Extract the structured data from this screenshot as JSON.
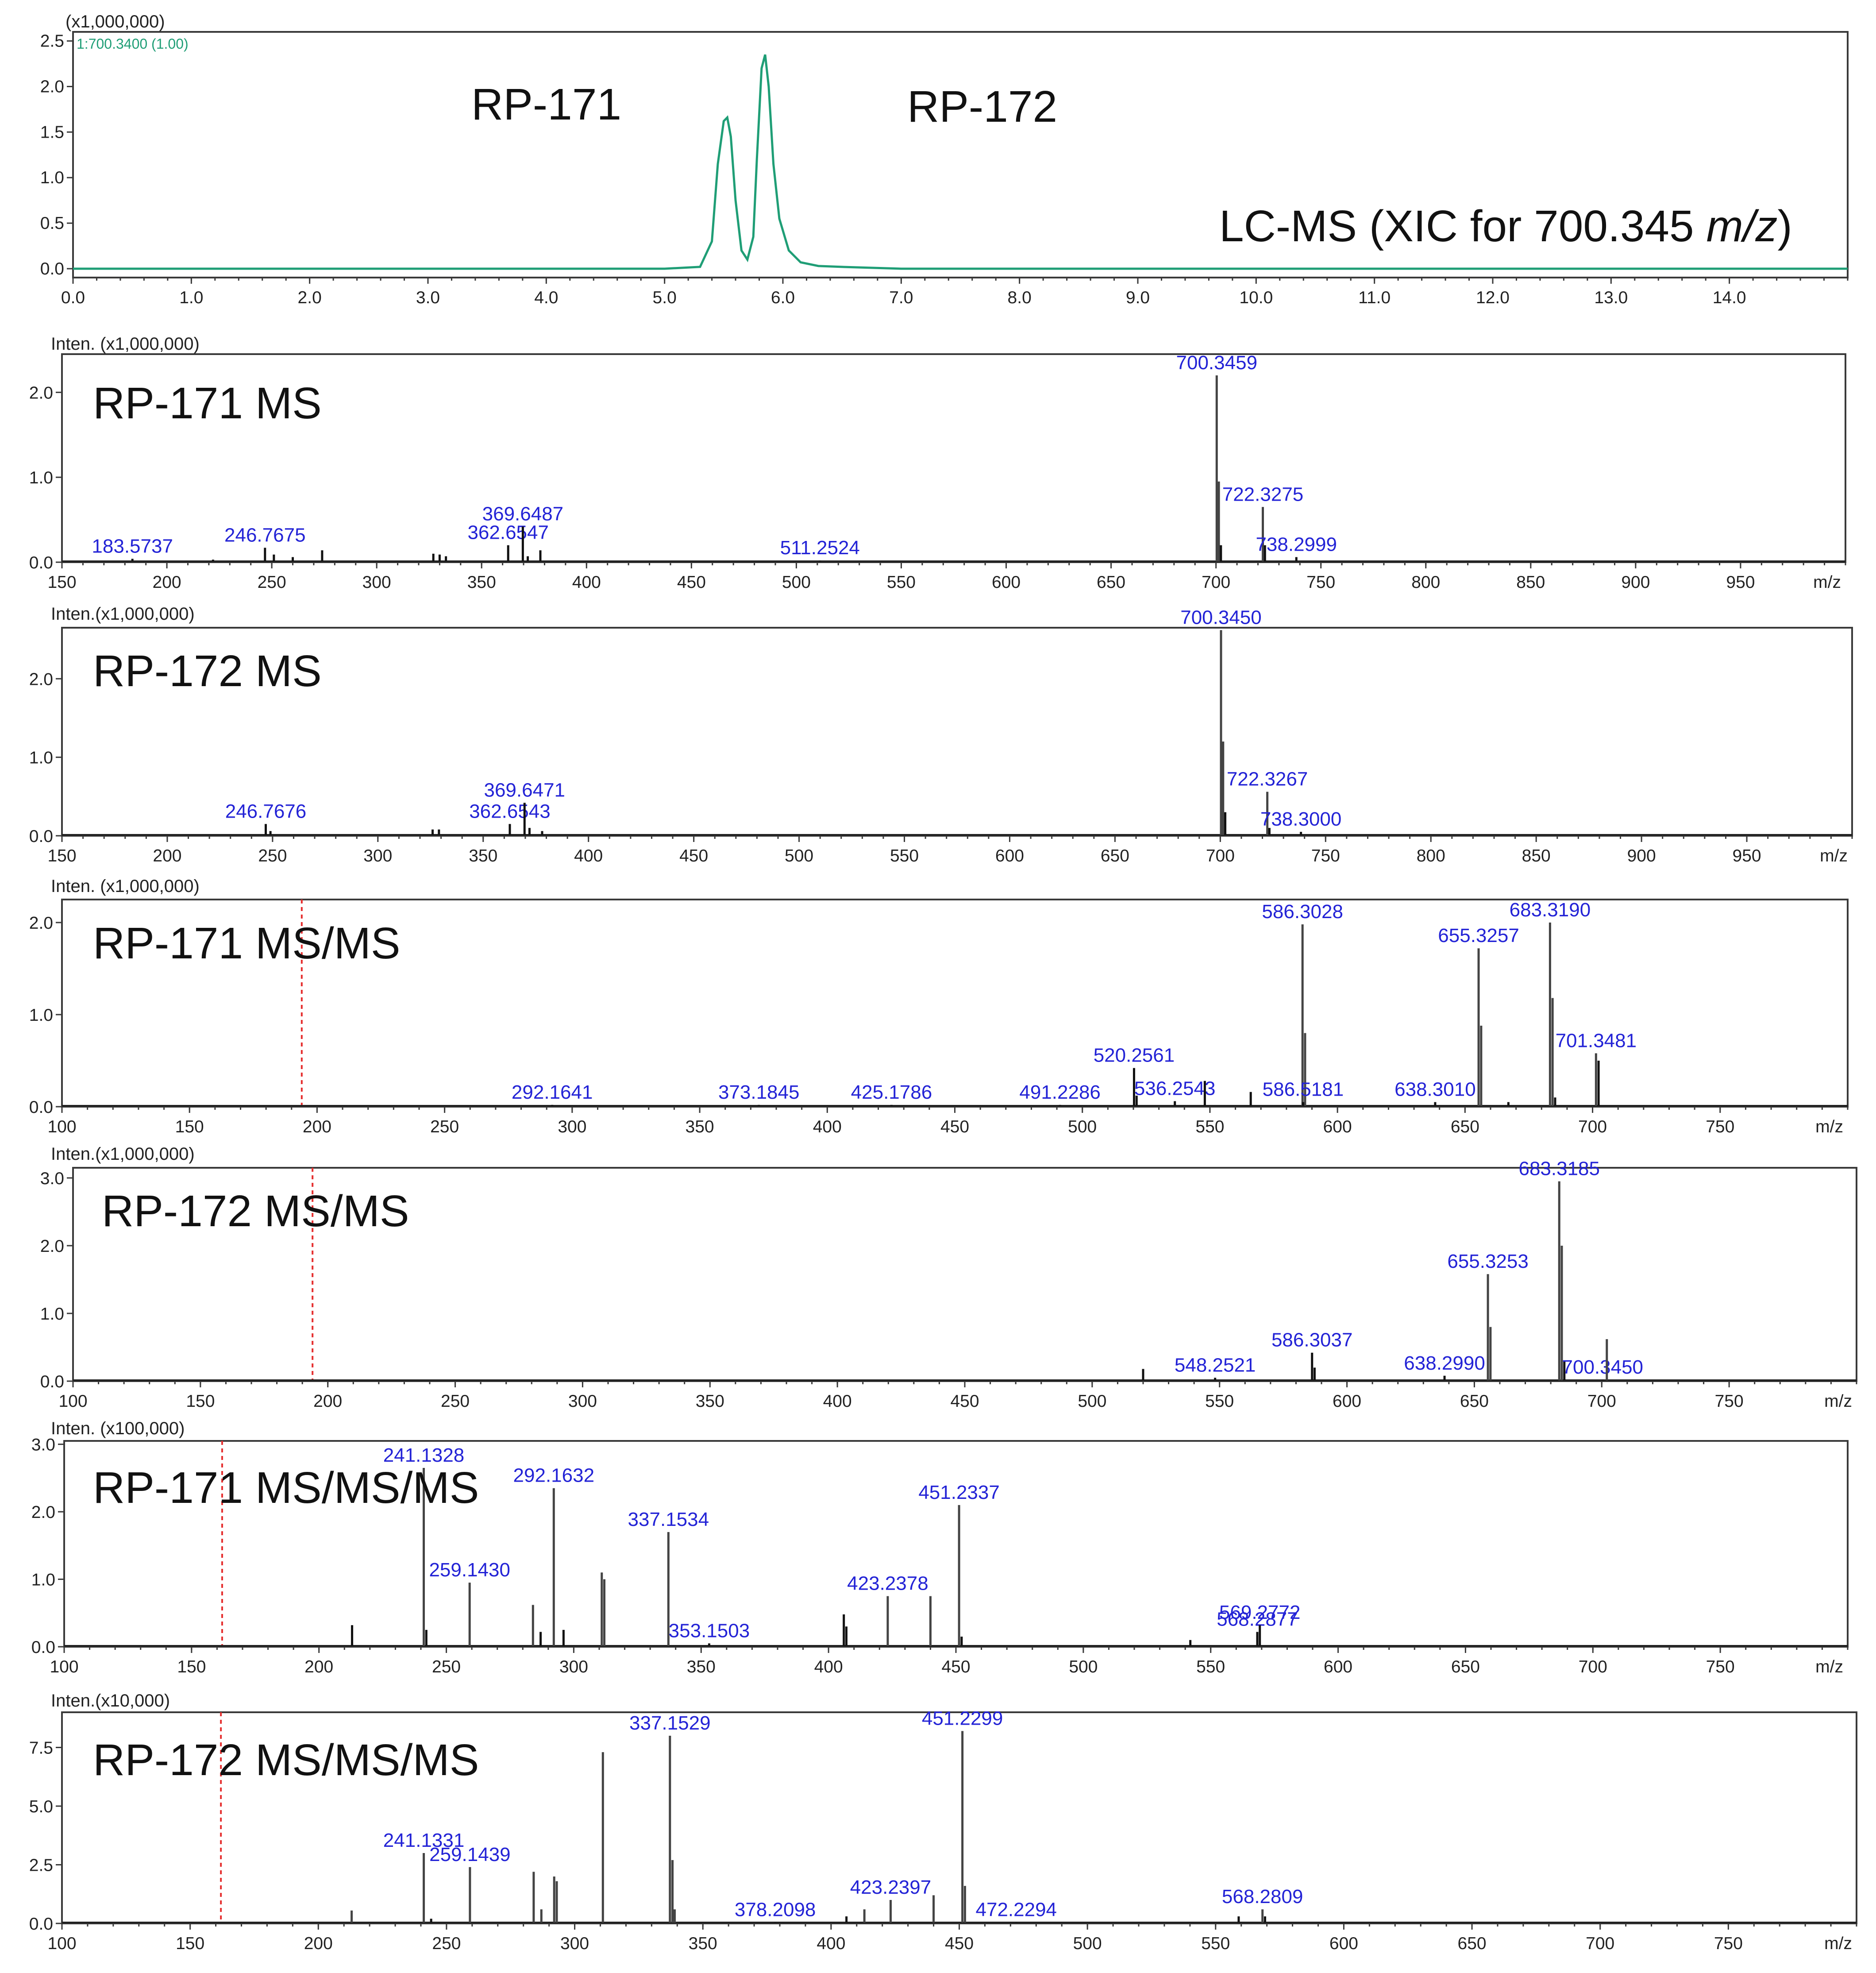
{
  "chart_data": [
    {
      "id": "xic",
      "type": "line",
      "title": "",
      "intensity_unit": "(x1,000,000)",
      "trace_label": "1:700.3400 (1.00)",
      "annotation_parts": [
        "LC-MS (XIC for 700.345 ",
        "m/z",
        ")"
      ],
      "peak_labels": [
        "RP-171",
        "RP-172"
      ],
      "xlim": [
        0,
        15.0
      ],
      "ylim": [
        0,
        2.6
      ],
      "xticks": [
        "0.0",
        "1.0",
        "2.0",
        "3.0",
        "4.0",
        "5.0",
        "6.0",
        "7.0",
        "8.0",
        "9.0",
        "10.0",
        "11.0",
        "12.0",
        "13.0",
        "14.0"
      ],
      "yticks": [
        "0.0",
        "0.5",
        "1.0",
        "1.5",
        "2.0",
        "2.5"
      ],
      "series": [
        {
          "name": "1:700.3400 (1.00)",
          "color": "#1f9e76",
          "x": [
            0,
            5.0,
            5.3,
            5.4,
            5.45,
            5.5,
            5.53,
            5.56,
            5.6,
            5.65,
            5.7,
            5.75,
            5.78,
            5.82,
            5.85,
            5.88,
            5.92,
            5.97,
            6.05,
            6.15,
            6.3,
            6.5,
            7.0,
            15.0
          ],
          "y": [
            0,
            0,
            0.02,
            0.3,
            1.15,
            1.62,
            1.66,
            1.45,
            0.75,
            0.2,
            0.1,
            0.35,
            1.2,
            2.2,
            2.35,
            2.0,
            1.15,
            0.55,
            0.2,
            0.07,
            0.03,
            0.02,
            0.0,
            0.0
          ]
        }
      ]
    },
    {
      "id": "rp171-ms",
      "type": "bar",
      "title": "RP-171 MS",
      "intensity_unit": "Inten. (x1,000,000)",
      "xlabel": "m/z",
      "xlim": [
        150,
        1000
      ],
      "ylim": [
        0,
        2.45
      ],
      "xticks": [
        150,
        200,
        250,
        300,
        350,
        400,
        450,
        500,
        550,
        600,
        650,
        700,
        750,
        800,
        850,
        900,
        950
      ],
      "yticks": [
        "0.0",
        "1.0",
        "2.0"
      ],
      "peaks": [
        {
          "mz": 183.5737,
          "intensity": 0.04,
          "label": "183.5737"
        },
        {
          "mz": 222,
          "intensity": 0.03
        },
        {
          "mz": 246.7675,
          "intensity": 0.17,
          "label": "246.7675"
        },
        {
          "mz": 251,
          "intensity": 0.09
        },
        {
          "mz": 260,
          "intensity": 0.06
        },
        {
          "mz": 274,
          "intensity": 0.14
        },
        {
          "mz": 327,
          "intensity": 0.1
        },
        {
          "mz": 330,
          "intensity": 0.09
        },
        {
          "mz": 333,
          "intensity": 0.07
        },
        {
          "mz": 362.6547,
          "intensity": 0.2,
          "label": "362.6547"
        },
        {
          "mz": 369.6487,
          "intensity": 0.42,
          "label": "369.6487"
        },
        {
          "mz": 372,
          "intensity": 0.07
        },
        {
          "mz": 378,
          "intensity": 0.14
        },
        {
          "mz": 511.2524,
          "intensity": 0.02,
          "label": "511.2524"
        },
        {
          "mz": 700.3459,
          "intensity": 2.2,
          "label": "700.3459"
        },
        {
          "mz": 701.35,
          "intensity": 0.95
        },
        {
          "mz": 702.35,
          "intensity": 0.2
        },
        {
          "mz": 722.3275,
          "intensity": 0.65,
          "label": "722.3275"
        },
        {
          "mz": 723.33,
          "intensity": 0.2
        },
        {
          "mz": 738.2999,
          "intensity": 0.06,
          "label": "738.2999"
        }
      ]
    },
    {
      "id": "rp172-ms",
      "type": "bar",
      "title": "RP-172 MS",
      "intensity_unit": "Inten.(x1,000,000)",
      "xlabel": "m/z",
      "xlim": [
        150,
        1000
      ],
      "ylim": [
        0,
        2.65
      ],
      "xticks": [
        150,
        200,
        250,
        300,
        350,
        400,
        450,
        500,
        550,
        600,
        650,
        700,
        750,
        800,
        850,
        900,
        950
      ],
      "yticks": [
        "0.0",
        "1.0",
        "2.0"
      ],
      "peaks": [
        {
          "mz": 246.7676,
          "intensity": 0.15,
          "label": "246.7676"
        },
        {
          "mz": 249,
          "intensity": 0.06
        },
        {
          "mz": 326,
          "intensity": 0.08
        },
        {
          "mz": 329,
          "intensity": 0.08
        },
        {
          "mz": 362.6543,
          "intensity": 0.15,
          "label": "362.6543"
        },
        {
          "mz": 369.6471,
          "intensity": 0.42,
          "label": "369.6471"
        },
        {
          "mz": 372,
          "intensity": 0.1
        },
        {
          "mz": 378,
          "intensity": 0.06
        },
        {
          "mz": 700.345,
          "intensity": 2.62,
          "label": "700.3450"
        },
        {
          "mz": 701.35,
          "intensity": 1.2
        },
        {
          "mz": 702.35,
          "intensity": 0.3
        },
        {
          "mz": 722.3267,
          "intensity": 0.56,
          "label": "722.3267"
        },
        {
          "mz": 723.33,
          "intensity": 0.1
        },
        {
          "mz": 738.3,
          "intensity": 0.05,
          "label": "738.3000"
        }
      ]
    },
    {
      "id": "rp171-msms",
      "type": "bar",
      "title": "RP-171 MS/MS",
      "intensity_unit": "Inten. (x1,000,000)",
      "xlabel": "m/z",
      "xlim": [
        100,
        800
      ],
      "ylim": [
        0,
        2.25
      ],
      "precursor_mz": 194,
      "xticks": [
        100,
        150,
        200,
        250,
        300,
        350,
        400,
        450,
        500,
        550,
        600,
        650,
        700,
        750
      ],
      "yticks": [
        "0.0",
        "1.0",
        "2.0"
      ],
      "peaks": [
        {
          "mz": 292.1641,
          "intensity": 0.02,
          "label": "292.1641"
        },
        {
          "mz": 373.1845,
          "intensity": 0.02,
          "label": "373.1845"
        },
        {
          "mz": 425.1786,
          "intensity": 0.02,
          "label": "425.1786"
        },
        {
          "mz": 491.2286,
          "intensity": 0.02,
          "label": "491.2286"
        },
        {
          "mz": 520.2561,
          "intensity": 0.42,
          "label": "520.2561"
        },
        {
          "mz": 521.26,
          "intensity": 0.12
        },
        {
          "mz": 536.2543,
          "intensity": 0.06,
          "label": "536.2543"
        },
        {
          "mz": 548,
          "intensity": 0.28
        },
        {
          "mz": 566,
          "intensity": 0.16
        },
        {
          "mz": 586.3028,
          "intensity": 1.98,
          "label": "586.3028"
        },
        {
          "mz": 587.3,
          "intensity": 0.8
        },
        {
          "mz": 586.5181,
          "intensity": 0.05,
          "label": "586.5181"
        },
        {
          "mz": 638.301,
          "intensity": 0.05,
          "label": "638.3010"
        },
        {
          "mz": 655.3257,
          "intensity": 1.72,
          "label": "655.3257"
        },
        {
          "mz": 656.33,
          "intensity": 0.88
        },
        {
          "mz": 667,
          "intensity": 0.05
        },
        {
          "mz": 683.319,
          "intensity": 2.0,
          "label": "683.3190"
        },
        {
          "mz": 684.32,
          "intensity": 1.18
        },
        {
          "mz": 685.32,
          "intensity": 0.1
        },
        {
          "mz": 701.3481,
          "intensity": 0.58,
          "label": "701.3481"
        },
        {
          "mz": 702.35,
          "intensity": 0.5
        }
      ]
    },
    {
      "id": "rp172-msms",
      "type": "bar",
      "title": "RP-172 MS/MS",
      "intensity_unit": "Inten.(x1,000,000)",
      "xlabel": "m/z",
      "xlim": [
        100,
        800
      ],
      "ylim": [
        0,
        3.15
      ],
      "precursor_mz": 194,
      "xticks": [
        100,
        150,
        200,
        250,
        300,
        350,
        400,
        450,
        500,
        550,
        600,
        650,
        700,
        750
      ],
      "yticks": [
        "0.0",
        "1.0",
        "2.0",
        "3.0"
      ],
      "peaks": [
        {
          "mz": 520,
          "intensity": 0.18
        },
        {
          "mz": 548.2521,
          "intensity": 0.05,
          "label": "548.2521"
        },
        {
          "mz": 586.3037,
          "intensity": 0.42,
          "label": "586.3037"
        },
        {
          "mz": 587.3,
          "intensity": 0.2
        },
        {
          "mz": 638.299,
          "intensity": 0.08,
          "label": "638.2990"
        },
        {
          "mz": 655.3253,
          "intensity": 1.58,
          "label": "655.3253"
        },
        {
          "mz": 656.33,
          "intensity": 0.8
        },
        {
          "mz": 683.3185,
          "intensity": 2.95,
          "label": "683.3185"
        },
        {
          "mz": 684.32,
          "intensity": 2.0
        },
        {
          "mz": 685.32,
          "intensity": 0.3
        },
        {
          "mz": 700.345,
          "intensity": 0.02,
          "label": "700.3450"
        },
        {
          "mz": 702,
          "intensity": 0.62
        }
      ]
    },
    {
      "id": "rp171-ms3",
      "type": "bar",
      "title": "RP-171 MS/MS/MS",
      "intensity_unit": "Inten. (x100,000)",
      "xlabel": "m/z",
      "xlim": [
        100,
        800
      ],
      "ylim": [
        0,
        3.05
      ],
      "precursor_mz": 162,
      "xticks": [
        100,
        150,
        200,
        250,
        300,
        350,
        400,
        450,
        500,
        550,
        600,
        650,
        700,
        750
      ],
      "yticks": [
        "0.0",
        "1.0",
        "2.0",
        "3.0"
      ],
      "peaks": [
        {
          "mz": 213,
          "intensity": 0.32
        },
        {
          "mz": 241.1328,
          "intensity": 2.65,
          "label": "241.1328"
        },
        {
          "mz": 242.14,
          "intensity": 0.25
        },
        {
          "mz": 259.143,
          "intensity": 0.95,
          "label": "259.1430"
        },
        {
          "mz": 284,
          "intensity": 0.62
        },
        {
          "mz": 287,
          "intensity": 0.22
        },
        {
          "mz": 292.1632,
          "intensity": 2.35,
          "label": "292.1632"
        },
        {
          "mz": 296,
          "intensity": 0.25
        },
        {
          "mz": 311,
          "intensity": 1.1
        },
        {
          "mz": 312,
          "intensity": 1.0
        },
        {
          "mz": 337.1534,
          "intensity": 1.7,
          "label": "337.1534"
        },
        {
          "mz": 353.1503,
          "intensity": 0.05,
          "label": "353.1503"
        },
        {
          "mz": 406,
          "intensity": 0.48
        },
        {
          "mz": 407,
          "intensity": 0.3
        },
        {
          "mz": 423.2378,
          "intensity": 0.75,
          "label": "423.2378"
        },
        {
          "mz": 440,
          "intensity": 0.75
        },
        {
          "mz": 451.2337,
          "intensity": 2.1,
          "label": "451.2337"
        },
        {
          "mz": 452.24,
          "intensity": 0.15
        },
        {
          "mz": 542,
          "intensity": 0.1
        },
        {
          "mz": 568.2877,
          "intensity": 0.22,
          "label": "568.2877"
        },
        {
          "mz": 569.2772,
          "intensity": 0.32,
          "label": "569.2772"
        }
      ]
    },
    {
      "id": "rp172-ms3",
      "type": "bar",
      "title": "RP-172 MS/MS/MS",
      "intensity_unit": "Inten.(x10,000)",
      "xlabel": "m/z",
      "xlim": [
        100,
        800
      ],
      "ylim": [
        0,
        9.0
      ],
      "precursor_mz": 162,
      "xticks": [
        100,
        150,
        200,
        250,
        300,
        350,
        400,
        450,
        500,
        550,
        600,
        650,
        700,
        750
      ],
      "yticks": [
        "0.0",
        "2.5",
        "5.0",
        "7.5"
      ],
      "peaks": [
        {
          "mz": 213,
          "intensity": 0.55
        },
        {
          "mz": 241.1331,
          "intensity": 3.0,
          "label": "241.1331"
        },
        {
          "mz": 244,
          "intensity": 0.2
        },
        {
          "mz": 259.1439,
          "intensity": 2.4,
          "label": "259.1439"
        },
        {
          "mz": 284,
          "intensity": 2.2
        },
        {
          "mz": 287,
          "intensity": 0.6
        },
        {
          "mz": 292,
          "intensity": 2.0
        },
        {
          "mz": 293,
          "intensity": 1.8
        },
        {
          "mz": 311,
          "intensity": 7.3
        },
        {
          "mz": 337.1529,
          "intensity": 8.0,
          "label": "337.1529"
        },
        {
          "mz": 338.15,
          "intensity": 2.7
        },
        {
          "mz": 339,
          "intensity": 0.6
        },
        {
          "mz": 378.2098,
          "intensity": 0.05,
          "label": "378.2098"
        },
        {
          "mz": 406,
          "intensity": 0.3
        },
        {
          "mz": 413,
          "intensity": 0.6
        },
        {
          "mz": 423.2397,
          "intensity": 1.0,
          "label": "423.2397"
        },
        {
          "mz": 440,
          "intensity": 1.2
        },
        {
          "mz": 451.2299,
          "intensity": 8.2,
          "label": "451.2299"
        },
        {
          "mz": 452.23,
          "intensity": 1.6
        },
        {
          "mz": 472.2294,
          "intensity": 0.05,
          "label": "472.2294"
        },
        {
          "mz": 559,
          "intensity": 0.3
        },
        {
          "mz": 568.2809,
          "intensity": 0.6,
          "label": "568.2809"
        },
        {
          "mz": 569.28,
          "intensity": 0.3
        }
      ]
    }
  ]
}
